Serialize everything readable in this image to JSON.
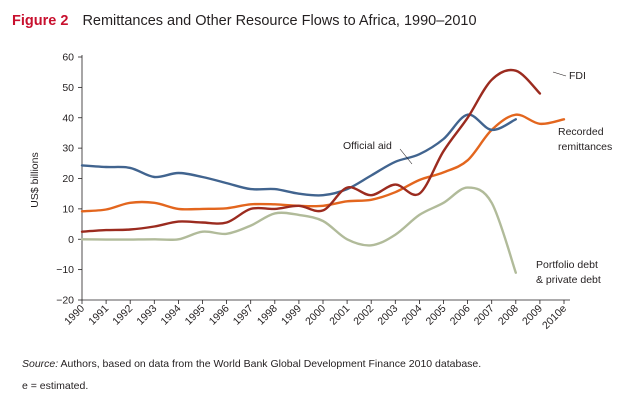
{
  "figure": {
    "label": "Figure 2",
    "title": "Remittances and Other Resource Flows to Africa, 1990–2010",
    "source_label": "Source:",
    "source_text": " Authors, based on data from the World Bank Global Development Finance 2010 database.",
    "estimated_note": "e = estimated."
  },
  "chart_data": {
    "type": "line",
    "ylabel": "US$ billions",
    "xlabel": "",
    "ylim": [
      -20,
      60
    ],
    "yticks": [
      -20,
      -10,
      0,
      10,
      20,
      30,
      40,
      50,
      60
    ],
    "grid": false,
    "categories": [
      "1990",
      "1991",
      "1992",
      "1993",
      "1994",
      "1995",
      "1996",
      "1997",
      "1998",
      "1999",
      "2000",
      "2001",
      "2002",
      "2003",
      "2004",
      "2005",
      "2006",
      "2007",
      "2008",
      "2009",
      "2010e"
    ],
    "series": [
      {
        "name": "FDI",
        "color": "#9b2b1f",
        "values": [
          2.5,
          3,
          3.2,
          4.2,
          5.8,
          5.5,
          5.5,
          10,
          10,
          11,
          9.5,
          17,
          14.5,
          18,
          15,
          29,
          40,
          52.5,
          55.5,
          48,
          null
        ]
      },
      {
        "name": "Official aid",
        "color": "#41648f",
        "values": [
          24.3,
          23.8,
          23.5,
          20.5,
          21.8,
          20.5,
          18.5,
          16.5,
          16.5,
          15,
          14.5,
          16.5,
          21,
          25.5,
          28,
          33,
          41,
          36,
          39.5,
          null,
          null
        ]
      },
      {
        "name": "Recorded remittances",
        "color": "#e3661e",
        "values": [
          9.2,
          9.8,
          12,
          12,
          10,
          10,
          10.2,
          11.5,
          11.5,
          11,
          11,
          12.5,
          13,
          15.5,
          19.5,
          22,
          26,
          36,
          41,
          38,
          39.5
        ]
      },
      {
        "name": "Portfolio debt & private debt",
        "color": "#b1bb9a",
        "values": [
          0,
          -0.1,
          -0.1,
          0,
          0,
          2.5,
          1.8,
          4.5,
          8.5,
          8,
          6,
          0,
          -2,
          1.5,
          8,
          12,
          17,
          12,
          -11,
          null,
          null
        ]
      }
    ],
    "series_labels": {
      "fdi": "FDI",
      "official_aid": "Official aid",
      "recorded_remittances_line1": "Recorded",
      "recorded_remittances_line2": "remittances",
      "portfolio_line1": "Portfolio debt",
      "portfolio_line2": "& private debt"
    }
  }
}
